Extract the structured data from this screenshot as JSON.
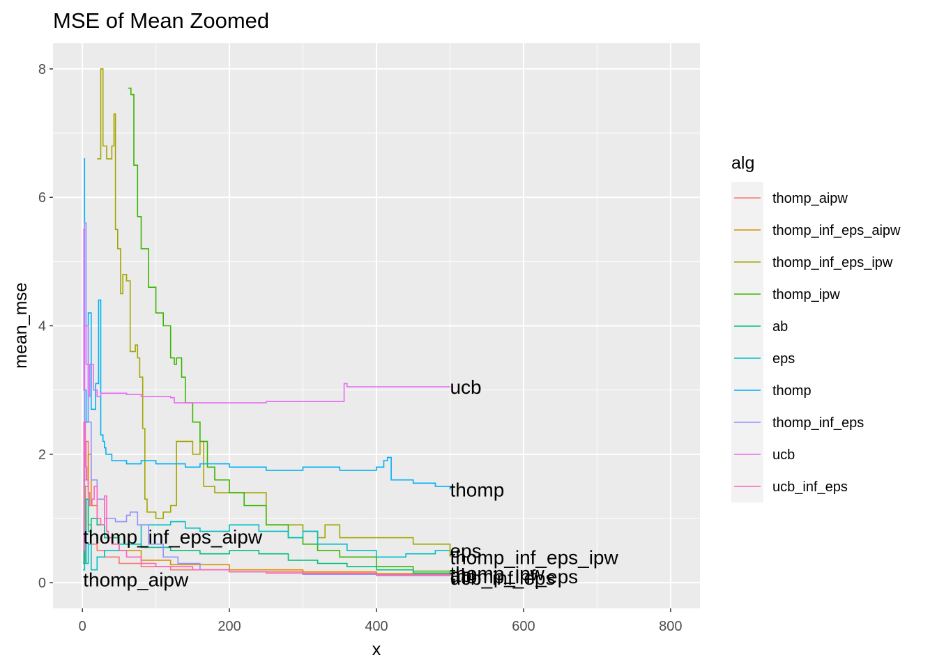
{
  "chart_data": {
    "type": "line",
    "title": "MSE of Mean Zoomed",
    "xlabel": "x",
    "ylabel": "mean_mse",
    "xlim": [
      -40,
      840
    ],
    "ylim": [
      -0.4,
      8.4
    ],
    "x_ticks": [
      0,
      200,
      400,
      600,
      800
    ],
    "y_ticks": [
      0,
      2,
      4,
      6,
      8
    ],
    "grid": true,
    "legend": {
      "title": "alg",
      "position": "right"
    },
    "series": [
      {
        "name": "thomp_aipw",
        "color": "#F8766D",
        "label": "thomp_aipw",
        "x": [
          1,
          3,
          5,
          8,
          12,
          20,
          30,
          50,
          80,
          120,
          200,
          300,
          400,
          500
        ],
        "y": [
          0.2,
          1.6,
          2.2,
          0.9,
          0.6,
          0.5,
          0.4,
          0.3,
          0.25,
          0.2,
          0.17,
          0.15,
          0.13,
          0.12
        ]
      },
      {
        "name": "thomp_inf_eps_aipw",
        "color": "#D89000",
        "label": "thomp_inf_eps_aipw",
        "x": [
          1,
          4,
          8,
          12,
          20,
          30,
          50,
          80,
          120,
          200,
          300,
          400,
          500
        ],
        "y": [
          0.3,
          1.5,
          2.0,
          1.2,
          0.9,
          0.7,
          0.5,
          0.35,
          0.28,
          0.2,
          0.17,
          0.14,
          0.12
        ]
      },
      {
        "name": "thomp_inf_eps_ipw",
        "color": "#A3A500",
        "label": "thomp_inf_eps_ipw",
        "x": [
          20,
          22,
          25,
          28,
          33,
          38,
          40,
          43,
          45,
          48,
          52,
          55,
          60,
          65,
          72,
          75,
          78,
          82,
          85,
          88,
          90,
          100,
          110,
          120,
          128,
          135,
          150,
          160,
          165,
          180,
          200,
          250,
          300,
          320,
          330,
          350,
          400,
          450,
          500
        ],
        "y": [
          6.6,
          6.6,
          8.0,
          6.8,
          6.6,
          6.6,
          6.8,
          7.3,
          5.5,
          5.2,
          4.5,
          4.8,
          4.7,
          3.6,
          3.7,
          3.5,
          3.2,
          2.4,
          1.3,
          1.1,
          1.1,
          1.0,
          1.1,
          1.2,
          2.2,
          2.2,
          2.0,
          2.2,
          1.5,
          1.4,
          1.4,
          0.9,
          0.8,
          0.7,
          0.9,
          0.7,
          0.7,
          0.6,
          0.4
        ]
      },
      {
        "name": "thomp_ipw",
        "color": "#39B600",
        "label": "",
        "x": [
          62,
          66,
          70,
          75,
          80,
          90,
          100,
          110,
          120,
          125,
          128,
          135,
          140,
          150,
          160,
          170,
          180,
          200,
          220,
          250,
          280,
          300,
          320,
          350,
          400,
          450,
          500
        ],
        "y": [
          7.7,
          7.6,
          6.5,
          5.7,
          5.2,
          4.6,
          4.2,
          4.0,
          3.5,
          3.4,
          3.5,
          3.2,
          2.8,
          2.5,
          2.2,
          1.8,
          1.6,
          1.4,
          1.2,
          0.9,
          0.7,
          0.6,
          0.5,
          0.4,
          0.25,
          0.18,
          0.15
        ]
      },
      {
        "name": "ab",
        "color": "#00BF7D",
        "label": "ab",
        "x": [
          1,
          2,
          3,
          5,
          8,
          12,
          20,
          30,
          50,
          80,
          120,
          160,
          200,
          240,
          280,
          320,
          360,
          400,
          450,
          500
        ],
        "y": [
          0.3,
          1.4,
          0.7,
          1.3,
          0.8,
          1.0,
          0.9,
          0.7,
          0.6,
          0.55,
          0.5,
          0.45,
          0.5,
          0.45,
          0.35,
          0.3,
          0.25,
          0.2,
          0.15,
          0.12
        ]
      },
      {
        "name": "eps",
        "color": "#00BFC4",
        "label": "eps",
        "x": [
          1,
          3,
          5,
          8,
          12,
          20,
          30,
          50,
          80,
          100,
          120,
          140,
          160,
          200,
          240,
          280,
          300,
          320,
          360,
          400,
          440,
          480,
          500
        ],
        "y": [
          0.2,
          0.8,
          0.3,
          0.6,
          0.2,
          0.4,
          0.5,
          0.6,
          0.9,
          0.9,
          0.95,
          0.85,
          0.8,
          0.9,
          0.8,
          0.7,
          0.8,
          0.6,
          0.5,
          0.4,
          0.45,
          0.5,
          0.5
        ]
      },
      {
        "name": "thomp",
        "color": "#00B0F6",
        "label": "thomp",
        "x": [
          2,
          3,
          5,
          8,
          12,
          18,
          22,
          25,
          28,
          30,
          32,
          40,
          60,
          80,
          100,
          140,
          160,
          200,
          250,
          300,
          350,
          400,
          410,
          415,
          420,
          430,
          450,
          480,
          500
        ],
        "y": [
          6.6,
          3.0,
          2.5,
          4.2,
          2.7,
          3.1,
          4.4,
          2.3,
          2.2,
          2.1,
          2.0,
          1.9,
          1.85,
          1.9,
          1.85,
          1.8,
          1.85,
          1.8,
          1.75,
          1.8,
          1.75,
          1.8,
          1.9,
          1.95,
          1.6,
          1.6,
          1.55,
          1.5,
          1.45
        ]
      },
      {
        "name": "thomp_inf_eps",
        "color": "#9590FF",
        "label": "thomp_inf_eps",
        "x": [
          1,
          3,
          5,
          8,
          12,
          20,
          30,
          45,
          60,
          65,
          75,
          90,
          110,
          130,
          160,
          200,
          250,
          300,
          400,
          500
        ],
        "y": [
          0.5,
          5.6,
          4.0,
          2.5,
          1.6,
          1.3,
          1.0,
          0.95,
          1.05,
          1.1,
          0.9,
          0.6,
          0.4,
          0.3,
          0.2,
          0.17,
          0.15,
          0.13,
          0.11,
          0.1
        ]
      },
      {
        "name": "ucb",
        "color": "#E76BF3",
        "label": "ucb",
        "x": [
          1,
          2,
          3,
          5,
          8,
          10,
          15,
          20,
          25,
          30,
          40,
          60,
          80,
          100,
          120,
          125,
          160,
          200,
          250,
          300,
          355,
          356,
          360,
          400,
          450,
          500
        ],
        "y": [
          5.5,
          3.0,
          4.0,
          3.4,
          2.9,
          3.4,
          3.0,
          2.9,
          2.95,
          2.95,
          2.95,
          2.93,
          2.9,
          2.9,
          2.88,
          2.8,
          2.8,
          2.8,
          2.82,
          2.82,
          2.82,
          3.1,
          3.05,
          3.05,
          3.05,
          3.05
        ]
      },
      {
        "name": "ucb_inf_eps",
        "color": "#FF62BC",
        "label": "ucb_inf_eps",
        "x": [
          1,
          2,
          4,
          6,
          8,
          10,
          13,
          16,
          20,
          25,
          30,
          33,
          35,
          40,
          50,
          60,
          80,
          100,
          150,
          200,
          250,
          300,
          400,
          500
        ],
        "y": [
          0.5,
          2.5,
          1.8,
          1.6,
          1.4,
          1.2,
          1.3,
          1.5,
          1.0,
          0.9,
          1.35,
          0.8,
          0.7,
          0.6,
          0.5,
          0.4,
          0.3,
          0.25,
          0.2,
          0.17,
          0.15,
          0.14,
          0.12,
          0.1
        ]
      }
    ],
    "end_labels": [
      {
        "text": "ucb",
        "x": 500,
        "y": 3.05
      },
      {
        "text": "thomp",
        "x": 500,
        "y": 1.45
      },
      {
        "text": "thomp_inf_eps_aipw",
        "x": 1,
        "y": 0.72
      },
      {
        "text": "eps",
        "x": 500,
        "y": 0.5
      },
      {
        "text": "thomp_inf_eps_ipw",
        "x": 500,
        "y": 0.4
      },
      {
        "text": "thomp_aipw",
        "x": 1,
        "y": 0.05
      },
      {
        "text": "ab",
        "x": 500,
        "y": 0.12
      },
      {
        "text": "thomp_inf_eps",
        "x": 500,
        "y": 0.1
      },
      {
        "text": "ucb_inf_eps",
        "x": 500,
        "y": 0.08
      },
      {
        "text": "thomp_ipw",
        "x": 500,
        "y": 0.15
      }
    ]
  }
}
